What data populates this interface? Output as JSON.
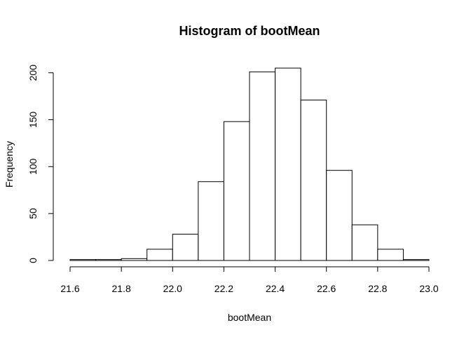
{
  "chart_data": {
    "type": "bar",
    "title": "Histogram of bootMean",
    "xlabel": "bootMean",
    "ylabel": "Frequency",
    "xlim": [
      21.6,
      23.0
    ],
    "ylim": [
      0,
      205
    ],
    "bin_width": 0.1,
    "bins": [
      {
        "start": 21.6,
        "end": 21.7,
        "value": 1
      },
      {
        "start": 21.7,
        "end": 21.8,
        "value": 1
      },
      {
        "start": 21.8,
        "end": 21.9,
        "value": 2
      },
      {
        "start": 21.9,
        "end": 22.0,
        "value": 12
      },
      {
        "start": 22.0,
        "end": 22.1,
        "value": 28
      },
      {
        "start": 22.1,
        "end": 22.2,
        "value": 84
      },
      {
        "start": 22.2,
        "end": 22.3,
        "value": 148
      },
      {
        "start": 22.3,
        "end": 22.4,
        "value": 201
      },
      {
        "start": 22.4,
        "end": 22.5,
        "value": 205
      },
      {
        "start": 22.5,
        "end": 22.6,
        "value": 171
      },
      {
        "start": 22.6,
        "end": 22.7,
        "value": 96
      },
      {
        "start": 22.7,
        "end": 22.8,
        "value": 38
      },
      {
        "start": 22.8,
        "end": 22.9,
        "value": 12
      },
      {
        "start": 22.9,
        "end": 23.0,
        "value": 1
      }
    ],
    "x_ticks": [
      {
        "value": 21.6,
        "label": "21.6"
      },
      {
        "value": 21.8,
        "label": "21.8"
      },
      {
        "value": 22.0,
        "label": "22.0"
      },
      {
        "value": 22.2,
        "label": "22.2"
      },
      {
        "value": 22.4,
        "label": "22.4"
      },
      {
        "value": 22.6,
        "label": "22.6"
      },
      {
        "value": 22.8,
        "label": "22.8"
      },
      {
        "value": 23.0,
        "label": "23.0"
      }
    ],
    "y_ticks": [
      {
        "value": 0,
        "label": "0"
      },
      {
        "value": 50,
        "label": "50"
      },
      {
        "value": 100,
        "label": "100"
      },
      {
        "value": 150,
        "label": "150"
      },
      {
        "value": 200,
        "label": "200"
      }
    ],
    "grid": false,
    "bar_fill": "#ffffff",
    "bar_stroke": "#000000"
  }
}
